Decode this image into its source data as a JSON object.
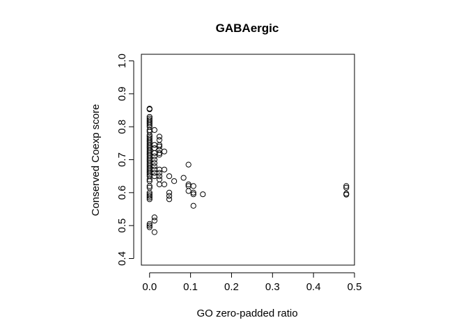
{
  "chart_data": {
    "type": "scatter",
    "title": "GABAergic",
    "xlabel": "GO zero-padded ratio",
    "ylabel": "Conserved Coexp score",
    "xlim": [
      -0.02,
      0.5
    ],
    "ylim": [
      0.38,
      1.02
    ],
    "xticks": [
      0.0,
      0.1,
      0.2,
      0.3,
      0.4,
      0.5
    ],
    "yticks": [
      0.4,
      0.5,
      0.6,
      0.7,
      0.8,
      0.9,
      1.0
    ],
    "xtick_labels": [
      "0.0",
      "0.1",
      "0.2",
      "0.3",
      "0.4",
      "0.5"
    ],
    "ytick_labels": [
      "0.4",
      "0.5",
      "0.6",
      "0.7",
      "0.8",
      "0.9",
      "1.0"
    ],
    "marker": "open-circle",
    "grid": false,
    "points": [
      [
        0.0,
        0.855
      ],
      [
        0.0,
        0.853
      ],
      [
        0.0,
        0.83
      ],
      [
        0.0,
        0.825
      ],
      [
        0.0,
        0.82
      ],
      [
        0.0,
        0.815
      ],
      [
        0.0,
        0.81
      ],
      [
        0.0,
        0.805
      ],
      [
        0.0,
        0.8
      ],
      [
        0.0,
        0.79
      ],
      [
        0.0,
        0.785
      ],
      [
        0.0,
        0.775
      ],
      [
        0.0,
        0.77
      ],
      [
        0.0,
        0.765
      ],
      [
        0.0,
        0.76
      ],
      [
        0.0,
        0.755
      ],
      [
        0.0,
        0.75
      ],
      [
        0.0,
        0.745
      ],
      [
        0.0,
        0.74
      ],
      [
        0.0,
        0.735
      ],
      [
        0.0,
        0.73
      ],
      [
        0.0,
        0.725
      ],
      [
        0.0,
        0.72
      ],
      [
        0.0,
        0.715
      ],
      [
        0.0,
        0.71
      ],
      [
        0.0,
        0.705
      ],
      [
        0.0,
        0.7
      ],
      [
        0.0,
        0.695
      ],
      [
        0.0,
        0.69
      ],
      [
        0.0,
        0.685
      ],
      [
        0.0,
        0.68
      ],
      [
        0.0,
        0.675
      ],
      [
        0.0,
        0.67
      ],
      [
        0.0,
        0.665
      ],
      [
        0.0,
        0.66
      ],
      [
        0.0,
        0.655
      ],
      [
        0.0,
        0.65
      ],
      [
        0.0,
        0.64
      ],
      [
        0.0,
        0.635
      ],
      [
        0.0,
        0.62
      ],
      [
        0.0,
        0.615
      ],
      [
        0.0,
        0.6
      ],
      [
        0.0,
        0.595
      ],
      [
        0.0,
        0.59
      ],
      [
        0.0,
        0.585
      ],
      [
        0.0,
        0.58
      ],
      [
        0.0,
        0.505
      ],
      [
        0.0,
        0.5
      ],
      [
        0.0,
        0.495
      ],
      [
        0.012,
        0.79
      ],
      [
        0.012,
        0.745
      ],
      [
        0.012,
        0.735
      ],
      [
        0.012,
        0.72
      ],
      [
        0.012,
        0.71
      ],
      [
        0.012,
        0.7
      ],
      [
        0.012,
        0.69
      ],
      [
        0.012,
        0.68
      ],
      [
        0.012,
        0.67
      ],
      [
        0.012,
        0.66
      ],
      [
        0.012,
        0.65
      ],
      [
        0.012,
        0.525
      ],
      [
        0.012,
        0.515
      ],
      [
        0.012,
        0.48
      ],
      [
        0.024,
        0.77
      ],
      [
        0.024,
        0.76
      ],
      [
        0.024,
        0.745
      ],
      [
        0.024,
        0.74
      ],
      [
        0.024,
        0.73
      ],
      [
        0.024,
        0.72
      ],
      [
        0.024,
        0.715
      ],
      [
        0.024,
        0.67
      ],
      [
        0.024,
        0.66
      ],
      [
        0.024,
        0.65
      ],
      [
        0.024,
        0.64
      ],
      [
        0.024,
        0.625
      ],
      [
        0.036,
        0.725
      ],
      [
        0.036,
        0.67
      ],
      [
        0.036,
        0.625
      ],
      [
        0.048,
        0.65
      ],
      [
        0.048,
        0.6
      ],
      [
        0.048,
        0.59
      ],
      [
        0.048,
        0.58
      ],
      [
        0.06,
        0.635
      ],
      [
        0.083,
        0.645
      ],
      [
        0.095,
        0.685
      ],
      [
        0.095,
        0.625
      ],
      [
        0.095,
        0.62
      ],
      [
        0.095,
        0.605
      ],
      [
        0.107,
        0.62
      ],
      [
        0.107,
        0.6
      ],
      [
        0.107,
        0.595
      ],
      [
        0.107,
        0.56
      ],
      [
        0.13,
        0.595
      ],
      [
        0.48,
        0.62
      ],
      [
        0.48,
        0.615
      ],
      [
        0.48,
        0.597
      ],
      [
        0.48,
        0.594
      ]
    ]
  }
}
